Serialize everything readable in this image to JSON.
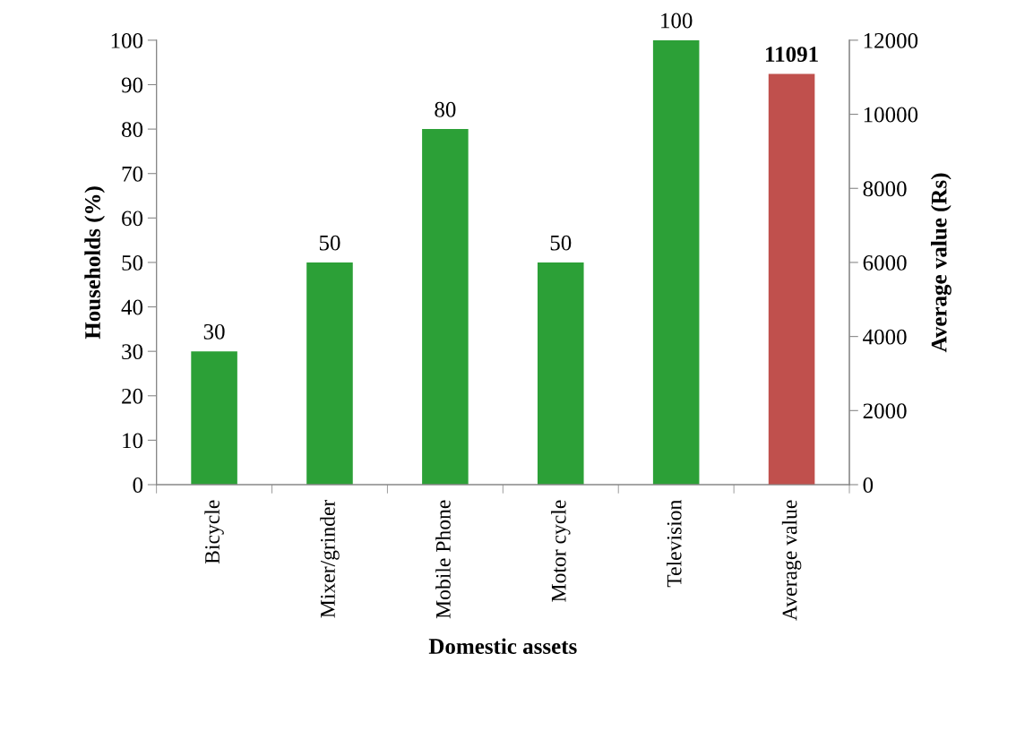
{
  "chart_data": {
    "type": "bar",
    "xlabel": "Domestic assets",
    "ylabel": "Households (%)",
    "y2label": "Average value (Rs)",
    "categories": [
      "Bicycle",
      "Mixer/grinder",
      "Mobile Phone",
      "Motor cycle",
      "Television",
      "Average value"
    ],
    "series": [
      {
        "color": "#2ca037",
        "values": [
          30,
          50,
          80,
          50,
          100,
          null
        ]
      },
      {
        "color": "#c0504d",
        "axis": "y2",
        "values": [
          null,
          null,
          null,
          null,
          null,
          11091
        ]
      }
    ],
    "ylim": [
      0,
      100
    ],
    "yticks": [
      0,
      10,
      20,
      30,
      40,
      50,
      60,
      70,
      80,
      90,
      100
    ],
    "y2lim": [
      0,
      12000
    ],
    "y2ticks": [
      0,
      2000,
      4000,
      6000,
      8000,
      10000,
      12000
    ],
    "data_labels": true,
    "grid": false,
    "legend": false
  }
}
